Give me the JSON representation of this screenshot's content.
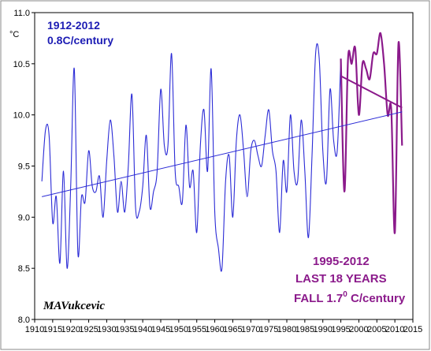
{
  "chart_data": {
    "type": "line",
    "xlim": [
      1910,
      2015
    ],
    "ylim": [
      8.0,
      11.0
    ],
    "x_ticks": [
      1910,
      1915,
      1920,
      1925,
      1930,
      1935,
      1940,
      1945,
      1950,
      1955,
      1960,
      1965,
      1970,
      1975,
      1980,
      1985,
      1990,
      1995,
      2000,
      2005,
      2010,
      2015
    ],
    "y_ticks": [
      8.0,
      8.5,
      9.0,
      9.5,
      10.0,
      10.5,
      11.0
    ],
    "y_tick_labels": [
      "8.0",
      "8.5",
      "9.0",
      "9.5",
      "10.0",
      "10.5",
      "11.0"
    ],
    "unit_label": "°C",
    "grid": false,
    "series": [
      {
        "color": "#2b2bd6",
        "x": [
          1912,
          1913,
          1914,
          1915,
          1916,
          1917,
          1918,
          1919,
          1920,
          1921,
          1922,
          1923,
          1924,
          1925,
          1926,
          1927,
          1928,
          1929,
          1930,
          1931,
          1932,
          1933,
          1934,
          1935,
          1936,
          1937,
          1938,
          1939,
          1940,
          1941,
          1942,
          1943,
          1944,
          1945,
          1946,
          1947,
          1948,
          1949,
          1950,
          1951,
          1952,
          1953,
          1954,
          1955,
          1956,
          1957,
          1958,
          1959,
          1960,
          1961,
          1962,
          1963,
          1964,
          1965,
          1966,
          1967,
          1968,
          1969,
          1970,
          1971,
          1972,
          1973,
          1974,
          1975,
          1976,
          1977,
          1978,
          1979,
          1980,
          1981,
          1982,
          1983,
          1984,
          1985,
          1986,
          1987,
          1988,
          1989,
          1990,
          1991,
          1992,
          1993,
          1994,
          1995
        ],
        "values": [
          9.35,
          9.85,
          9.8,
          8.95,
          9.2,
          8.55,
          9.45,
          8.5,
          9.3,
          10.45,
          8.65,
          9.2,
          9.15,
          9.65,
          9.3,
          9.25,
          9.4,
          9.0,
          9.55,
          9.95,
          9.6,
          9.05,
          9.35,
          9.05,
          9.5,
          10.2,
          9.1,
          9.05,
          9.3,
          9.8,
          9.1,
          9.25,
          9.45,
          10.25,
          9.7,
          9.7,
          10.6,
          9.45,
          9.3,
          9.15,
          9.9,
          9.3,
          9.45,
          8.85,
          9.7,
          10.05,
          9.45,
          10.45,
          9.05,
          8.7,
          8.5,
          9.35,
          9.6,
          9.0,
          9.75,
          10.0,
          9.65,
          9.2,
          9.65,
          9.75,
          9.6,
          9.5,
          9.8,
          10.05,
          9.65,
          9.45,
          8.85,
          9.55,
          9.25,
          10.0,
          9.45,
          9.35,
          9.95,
          9.45,
          8.8,
          9.6,
          10.6,
          10.55,
          9.65,
          9.35,
          10.25,
          9.75,
          9.65,
          10.55
        ]
      },
      {
        "color": "#8b1a8b",
        "x": [
          1995,
          1996,
          1997,
          1998,
          1999,
          2000,
          2001,
          2002,
          2003,
          2004,
          2005,
          2006,
          2007,
          2008,
          2009,
          2010,
          2011,
          2012
        ],
        "values": [
          10.55,
          9.25,
          10.55,
          10.5,
          10.65,
          10.0,
          10.5,
          10.45,
          10.35,
          10.6,
          10.6,
          10.8,
          10.5,
          10.0,
          10.05,
          8.85,
          10.7,
          9.7
        ]
      }
    ],
    "trend_lines": [
      {
        "color": "#2b2bd6",
        "x": [
          1912,
          2012
        ],
        "y": [
          9.2,
          10.03
        ]
      },
      {
        "color": "#8b1a8b",
        "x": [
          1995,
          2012
        ],
        "y": [
          10.38,
          10.07
        ]
      }
    ],
    "annotations": {
      "period_long": "1912-2012",
      "rate_long": "0.8C/century",
      "period_short": "1995-2012",
      "last_years": "LAST 18 YEARS",
      "fall_prefix": "FALL 1.7",
      "fall_sup": "0",
      "fall_suffix": " C/century",
      "signature": "MAVukcevic"
    },
    "colors": {
      "blue_series": "#2b2bd6",
      "purple_series": "#8b1a8b",
      "blue_text": "#1c1cb4",
      "purple_text": "#8b1a8b"
    }
  }
}
